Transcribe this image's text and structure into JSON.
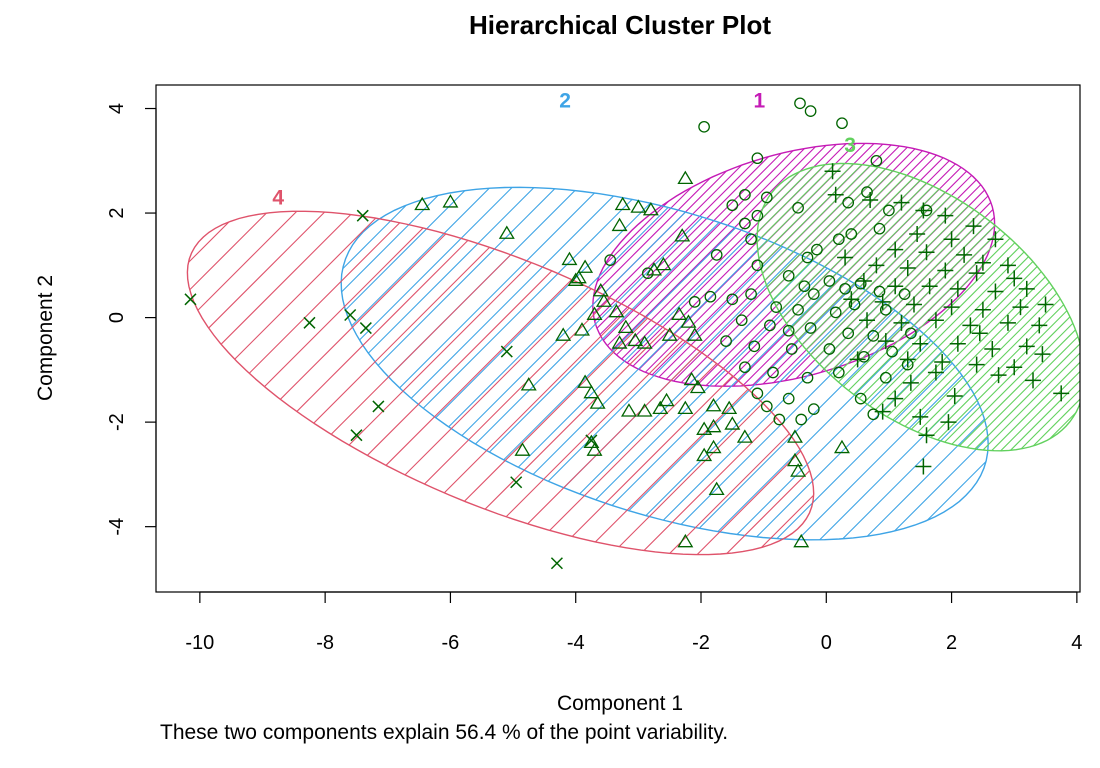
{
  "chart_data": {
    "type": "scatter",
    "title": "Hierarchical Cluster Plot",
    "xlabel": "Component 1",
    "ylabel": "Component 2",
    "subtitle": "These two components explain 56.4 % of the point variability.",
    "xlim": [
      -10.7,
      4.05
    ],
    "ylim": [
      -5.25,
      4.45
    ],
    "x_ticks": [
      -10,
      -8,
      -6,
      -4,
      -2,
      0,
      2,
      4
    ],
    "y_ticks": [
      -4,
      -2,
      0,
      2,
      4
    ],
    "x_tick_labels": [
      "-10",
      "-8",
      "-6",
      "-4",
      "-2",
      "0",
      "2",
      "4"
    ],
    "y_tick_labels": [
      "-4",
      "-2",
      "0",
      "2",
      "4"
    ],
    "point_color": "#006400",
    "clusters": [
      {
        "label": "1",
        "color": "#C51BB6",
        "marker": "circle",
        "ellipse": {
          "cx": -0.52,
          "cy": 1.01,
          "a": 3.37,
          "b": 2.08,
          "angle_deg": 23
        },
        "label_pos": {
          "x": -1.07,
          "y": 4.15
        },
        "points": [
          [
            -0.42,
            4.1
          ],
          [
            -0.25,
            3.95
          ],
          [
            0.25,
            3.72
          ],
          [
            -1.95,
            3.65
          ],
          [
            -1.1,
            3.05
          ],
          [
            0.8,
            3.0
          ],
          [
            0.65,
            2.4
          ],
          [
            -1.3,
            2.35
          ],
          [
            -1.5,
            2.15
          ],
          [
            -0.95,
            2.3
          ],
          [
            0.35,
            2.2
          ],
          [
            1.0,
            2.05
          ],
          [
            1.6,
            2.05
          ],
          [
            -1.1,
            1.95
          ],
          [
            -0.45,
            2.1
          ],
          [
            -1.2,
            1.5
          ],
          [
            -1.3,
            1.8
          ],
          [
            0.85,
            1.7
          ],
          [
            0.4,
            1.6
          ],
          [
            0.2,
            1.5
          ],
          [
            -0.15,
            1.3
          ],
          [
            -0.3,
            1.15
          ],
          [
            -1.75,
            1.2
          ],
          [
            -3.45,
            1.1
          ],
          [
            -2.85,
            0.85
          ],
          [
            -1.1,
            1.0
          ],
          [
            -0.6,
            0.8
          ],
          [
            -0.35,
            0.6
          ],
          [
            -0.2,
            0.45
          ],
          [
            0.05,
            0.7
          ],
          [
            0.3,
            0.55
          ],
          [
            0.55,
            0.65
          ],
          [
            0.85,
            0.5
          ],
          [
            1.25,
            0.45
          ],
          [
            -1.2,
            0.45
          ],
          [
            -1.5,
            0.35
          ],
          [
            -1.85,
            0.4
          ],
          [
            -2.1,
            0.3
          ],
          [
            -0.8,
            0.2
          ],
          [
            -0.45,
            0.15
          ],
          [
            0.15,
            0.1
          ],
          [
            0.45,
            0.25
          ],
          [
            0.95,
            0.15
          ],
          [
            -1.35,
            -0.05
          ],
          [
            -0.9,
            -0.15
          ],
          [
            -0.6,
            -0.25
          ],
          [
            -0.25,
            -0.2
          ],
          [
            0.35,
            -0.3
          ],
          [
            0.75,
            -0.35
          ],
          [
            1.35,
            -0.3
          ],
          [
            -1.6,
            -0.45
          ],
          [
            -1.15,
            -0.55
          ],
          [
            -0.55,
            -0.6
          ],
          [
            0.05,
            -0.6
          ],
          [
            0.6,
            -0.75
          ],
          [
            1.05,
            -0.65
          ],
          [
            -1.3,
            -0.95
          ],
          [
            -0.85,
            -1.05
          ],
          [
            -0.3,
            -1.15
          ],
          [
            0.2,
            -1.05
          ],
          [
            0.95,
            -1.15
          ],
          [
            -1.1,
            -1.45
          ],
          [
            -0.6,
            -1.55
          ],
          [
            -0.95,
            -1.7
          ],
          [
            -0.2,
            -1.75
          ],
          [
            0.55,
            -1.55
          ],
          [
            -0.75,
            -1.95
          ],
          [
            -0.4,
            -1.95
          ],
          [
            1.3,
            -0.9
          ],
          [
            0.75,
            -1.85
          ]
        ]
      },
      {
        "label": "2",
        "color": "#3EA4E6",
        "marker": "triangle",
        "ellipse": {
          "cx": -2.58,
          "cy": -0.88,
          "a": 5.48,
          "b": 2.83,
          "angle_deg": -23
        },
        "label_pos": {
          "x": -4.17,
          "y": 4.15
        },
        "points": [
          [
            -6.45,
            2.15
          ],
          [
            -6.0,
            2.2
          ],
          [
            -5.1,
            1.6
          ],
          [
            -4.1,
            1.1
          ],
          [
            -3.25,
            2.15
          ],
          [
            -3.0,
            2.1
          ],
          [
            -2.8,
            2.05
          ],
          [
            -2.25,
            2.65
          ],
          [
            -2.3,
            1.55
          ],
          [
            -3.3,
            1.75
          ],
          [
            -3.85,
            0.95
          ],
          [
            -3.95,
            0.75
          ],
          [
            -2.75,
            0.9
          ],
          [
            -2.6,
            1.0
          ],
          [
            -3.6,
            0.5
          ],
          [
            -3.55,
            0.3
          ],
          [
            -3.7,
            0.05
          ],
          [
            -2.35,
            0.05
          ],
          [
            -2.2,
            -0.1
          ],
          [
            -4.2,
            -0.35
          ],
          [
            -3.9,
            -0.25
          ],
          [
            -3.2,
            -0.2
          ],
          [
            -3.05,
            -0.45
          ],
          [
            -2.9,
            -0.5
          ],
          [
            -2.5,
            -0.35
          ],
          [
            -2.1,
            -0.35
          ],
          [
            -3.3,
            -0.5
          ],
          [
            -4.75,
            -1.3
          ],
          [
            -3.85,
            -1.25
          ],
          [
            -3.75,
            -1.45
          ],
          [
            -3.65,
            -1.65
          ],
          [
            -2.15,
            -1.2
          ],
          [
            -2.05,
            -1.35
          ],
          [
            -2.55,
            -1.6
          ],
          [
            -2.65,
            -1.75
          ],
          [
            -2.9,
            -1.8
          ],
          [
            -3.15,
            -1.8
          ],
          [
            -2.25,
            -1.75
          ],
          [
            -1.8,
            -1.7
          ],
          [
            -1.55,
            -1.75
          ],
          [
            -1.8,
            -2.1
          ],
          [
            -1.95,
            -2.15
          ],
          [
            -1.5,
            -2.05
          ],
          [
            -1.95,
            -2.65
          ],
          [
            -1.8,
            -2.5
          ],
          [
            -1.3,
            -2.3
          ],
          [
            -0.5,
            -2.3
          ],
          [
            -0.5,
            -2.75
          ],
          [
            -0.45,
            -2.95
          ],
          [
            0.25,
            -2.5
          ],
          [
            -3.75,
            -2.4
          ],
          [
            -3.7,
            -2.55
          ],
          [
            -4.85,
            -2.55
          ],
          [
            -1.75,
            -3.3
          ],
          [
            -2.25,
            -4.3
          ],
          [
            -0.4,
            -4.3
          ],
          [
            -4.0,
            0.7
          ],
          [
            -3.35,
            0.1
          ]
        ]
      },
      {
        "label": "3",
        "color": "#62D15E",
        "marker": "plus",
        "ellipse": {
          "cx": 1.51,
          "cy": 0.2,
          "a": 3.26,
          "b": 1.94,
          "angle_deg": -48
        },
        "label_pos": {
          "x": 0.38,
          "y": 3.3
        },
        "points": [
          [
            0.1,
            2.8
          ],
          [
            0.15,
            2.35
          ],
          [
            0.7,
            2.25
          ],
          [
            1.2,
            2.2
          ],
          [
            1.55,
            2.05
          ],
          [
            1.9,
            1.95
          ],
          [
            2.35,
            1.75
          ],
          [
            1.45,
            1.6
          ],
          [
            2.0,
            1.5
          ],
          [
            2.7,
            1.5
          ],
          [
            1.1,
            1.3
          ],
          [
            1.6,
            1.25
          ],
          [
            2.2,
            1.2
          ],
          [
            2.5,
            1.05
          ],
          [
            2.9,
            1.0
          ],
          [
            0.3,
            1.15
          ],
          [
            0.8,
            1.0
          ],
          [
            1.3,
            0.95
          ],
          [
            1.9,
            0.9
          ],
          [
            2.4,
            0.85
          ],
          [
            3.0,
            0.75
          ],
          [
            0.6,
            0.7
          ],
          [
            1.1,
            0.6
          ],
          [
            1.65,
            0.6
          ],
          [
            2.1,
            0.55
          ],
          [
            2.7,
            0.5
          ],
          [
            3.2,
            0.55
          ],
          [
            0.4,
            0.35
          ],
          [
            0.9,
            0.3
          ],
          [
            1.4,
            0.25
          ],
          [
            2.0,
            0.2
          ],
          [
            2.5,
            0.15
          ],
          [
            3.1,
            0.2
          ],
          [
            3.5,
            0.25
          ],
          [
            0.65,
            -0.05
          ],
          [
            1.2,
            -0.1
          ],
          [
            1.75,
            -0.05
          ],
          [
            2.3,
            -0.15
          ],
          [
            2.9,
            -0.1
          ],
          [
            3.4,
            -0.15
          ],
          [
            0.95,
            -0.45
          ],
          [
            1.5,
            -0.5
          ],
          [
            2.1,
            -0.5
          ],
          [
            2.65,
            -0.6
          ],
          [
            3.2,
            -0.55
          ],
          [
            3.45,
            -0.7
          ],
          [
            1.3,
            -0.8
          ],
          [
            1.85,
            -0.85
          ],
          [
            2.4,
            -0.9
          ],
          [
            3.0,
            -0.95
          ],
          [
            1.75,
            -1.05
          ],
          [
            2.75,
            -1.1
          ],
          [
            3.3,
            -1.2
          ],
          [
            1.35,
            -1.25
          ],
          [
            2.05,
            -1.5
          ],
          [
            0.9,
            -1.8
          ],
          [
            1.5,
            -1.9
          ],
          [
            1.6,
            -2.25
          ],
          [
            1.95,
            -2.0
          ],
          [
            1.55,
            -2.85
          ],
          [
            3.75,
            -1.45
          ],
          [
            2.45,
            -0.3
          ],
          [
            1.1,
            -1.55
          ],
          [
            0.5,
            -0.8
          ]
        ]
      },
      {
        "label": "4",
        "color": "#DF536B",
        "marker": "x",
        "ellipse": {
          "cx": -5.2,
          "cy": -1.25,
          "a": 5.53,
          "b": 2.28,
          "angle_deg": -28
        },
        "label_pos": {
          "x": -8.75,
          "y": 2.3
        },
        "points": [
          [
            -10.15,
            0.35
          ],
          [
            -8.25,
            -0.1
          ],
          [
            -7.6,
            0.05
          ],
          [
            -7.35,
            -0.2
          ],
          [
            -7.4,
            1.95
          ],
          [
            -7.15,
            -1.7
          ],
          [
            -7.5,
            -2.25
          ],
          [
            -5.1,
            -0.65
          ],
          [
            -4.95,
            -3.15
          ],
          [
            -4.3,
            -4.7
          ],
          [
            -3.75,
            -2.35
          ]
        ]
      }
    ]
  }
}
